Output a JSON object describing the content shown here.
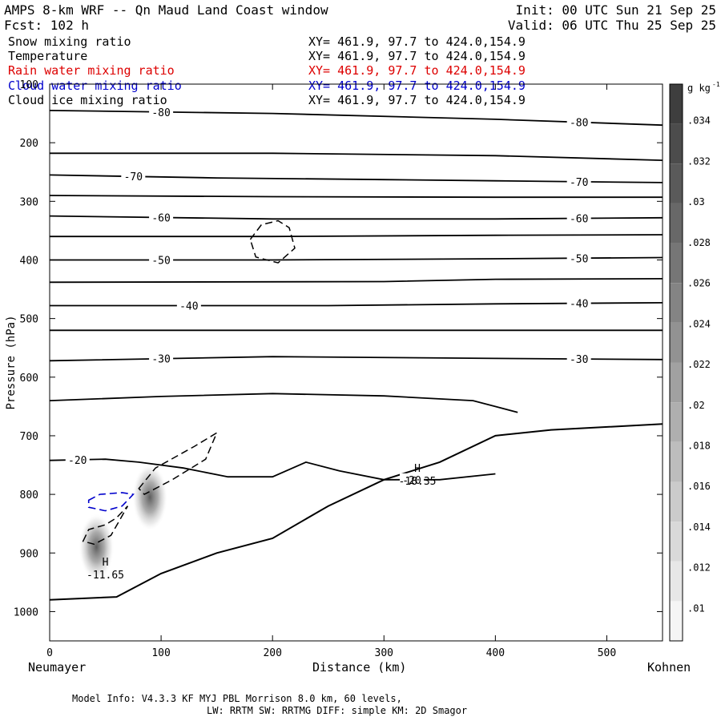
{
  "header": {
    "title": "AMPS 8-km WRF -- Qn Maud Land Coast window",
    "init": "Init: 00 UTC Sun 21 Sep 25",
    "fcst": "Fcst:  102 h",
    "valid": "Valid: 06 UTC Thu 25 Sep 25"
  },
  "fields": [
    {
      "name": "Snow mixing ratio",
      "xy": "XY= 461.9, 97.7 to 424.0,154.9",
      "color": "#000000"
    },
    {
      "name": "Temperature",
      "xy": "XY= 461.9, 97.7 to 424.0,154.9",
      "color": "#000000"
    },
    {
      "name": "Rain water mixing ratio",
      "xy": "XY= 461.9, 97.7 to 424.0,154.9",
      "color": "#dd0000"
    },
    {
      "name": "Cloud water mixing ratio",
      "xy": "XY= 461.9, 97.7 to 424.0,154.9",
      "color": "#0000cc"
    },
    {
      "name": "Cloud ice mixing ratio",
      "xy": "XY= 461.9, 97.7 to 424.0,154.9",
      "color": "#000000"
    }
  ],
  "footer": {
    "line1": "Model Info: V4.3.3   KF      MYJ PBL  Morrison             8.0 km,  60 levels,",
    "line2": "LW: RRTM SW: RRTMG   DIFF: simple KM: 2D Smagor"
  },
  "chart_data": {
    "type": "contour",
    "xlabel": "Distance (km)",
    "ylabel": "Pressure (hPa)",
    "xlim": [
      0,
      550
    ],
    "ylim": [
      1050,
      100
    ],
    "x_ticks": [
      0,
      100,
      200,
      300,
      400,
      500
    ],
    "y_ticks": [
      100,
      200,
      300,
      400,
      500,
      600,
      700,
      800,
      900,
      1000
    ],
    "x_start_label": "Neumayer",
    "x_end_label": "Kohnen",
    "colorbar": {
      "unit": "g kg",
      "unit_exp": "-1",
      "tick_labels": [
        ".01",
        ".012",
        ".014",
        ".016",
        ".018",
        ".02",
        ".022",
        ".024",
        ".026",
        ".028",
        ".03",
        ".032",
        ".034"
      ],
      "tick_values": [
        0.01,
        0.012,
        0.014,
        0.016,
        0.018,
        0.02,
        0.022,
        0.024,
        0.026,
        0.028,
        0.03,
        0.032,
        0.034
      ],
      "range": [
        0.0084,
        0.0358
      ],
      "levels": 14
    },
    "temperature_contours": [
      {
        "value": -80,
        "label": "-80",
        "points": [
          [
            0,
            145
          ],
          [
            200,
            150
          ],
          [
            400,
            160
          ],
          [
            550,
            170
          ]
        ]
      },
      {
        "value": -75,
        "label": "",
        "points": [
          [
            0,
            218
          ],
          [
            200,
            218
          ],
          [
            400,
            222
          ],
          [
            550,
            230
          ]
        ]
      },
      {
        "value": -70,
        "label": "-70",
        "points": [
          [
            0,
            255
          ],
          [
            150,
            260
          ],
          [
            300,
            263
          ],
          [
            400,
            265
          ],
          [
            550,
            268
          ]
        ]
      },
      {
        "value": -65,
        "label": "",
        "points": [
          [
            0,
            290
          ],
          [
            200,
            292
          ],
          [
            400,
            293
          ],
          [
            550,
            293
          ]
        ]
      },
      {
        "value": -60,
        "label": "-60",
        "points": [
          [
            0,
            325
          ],
          [
            200,
            330
          ],
          [
            400,
            330
          ],
          [
            550,
            328
          ]
        ]
      },
      {
        "value": -55,
        "label": "",
        "points": [
          [
            0,
            360
          ],
          [
            200,
            360
          ],
          [
            400,
            358
          ],
          [
            550,
            357
          ]
        ]
      },
      {
        "value": -50,
        "label": "-50",
        "points": [
          [
            0,
            400
          ],
          [
            200,
            400
          ],
          [
            400,
            398
          ],
          [
            550,
            396
          ]
        ]
      },
      {
        "value": -45,
        "label": "",
        "points": [
          [
            0,
            438
          ],
          [
            300,
            437
          ],
          [
            400,
            433
          ],
          [
            550,
            432
          ]
        ]
      },
      {
        "value": -40,
        "label": "-40",
        "points": [
          [
            0,
            478
          ],
          [
            250,
            478
          ],
          [
            400,
            475
          ],
          [
            550,
            473
          ]
        ]
      },
      {
        "value": -35,
        "label": "",
        "points": [
          [
            0,
            520
          ],
          [
            300,
            520
          ],
          [
            550,
            520
          ]
        ]
      },
      {
        "value": -30,
        "label": "-30",
        "points": [
          [
            0,
            572
          ],
          [
            200,
            565
          ],
          [
            400,
            568
          ],
          [
            550,
            570
          ]
        ]
      },
      {
        "value": -25,
        "label": "",
        "points": [
          [
            0,
            640
          ],
          [
            100,
            633
          ],
          [
            200,
            628
          ],
          [
            300,
            632
          ],
          [
            380,
            640
          ],
          [
            420,
            660
          ]
        ]
      },
      {
        "value": -20,
        "label": "-20",
        "points": [
          [
            0,
            742
          ],
          [
            50,
            740
          ],
          [
            80,
            745
          ],
          [
            120,
            755
          ],
          [
            160,
            770
          ],
          [
            200,
            770
          ],
          [
            230,
            745
          ],
          [
            260,
            760
          ],
          [
            300,
            775
          ],
          [
            350,
            775
          ],
          [
            400,
            765
          ]
        ]
      }
    ],
    "rain_water_contours": [],
    "cloud_water_contours": [
      {
        "label": "",
        "points": [
          [
            35,
            810
          ],
          [
            45,
            800
          ],
          [
            65,
            797
          ],
          [
            75,
            800
          ],
          [
            65,
            820
          ],
          [
            50,
            828
          ],
          [
            35,
            822
          ]
        ]
      }
    ],
    "cloud_ice_contours": [
      {
        "label": "",
        "points": [
          [
            180,
            365
          ],
          [
            190,
            340
          ],
          [
            205,
            333
          ],
          [
            215,
            345
          ],
          [
            220,
            380
          ],
          [
            205,
            405
          ],
          [
            185,
            395
          ]
        ]
      },
      {
        "label": "",
        "points": [
          [
            80,
            790
          ],
          [
            95,
            755
          ],
          [
            130,
            718
          ],
          [
            150,
            695
          ],
          [
            140,
            740
          ],
          [
            110,
            775
          ],
          [
            85,
            800
          ]
        ]
      },
      {
        "label": "",
        "points": [
          [
            30,
            880
          ],
          [
            35,
            860
          ],
          [
            50,
            852
          ],
          [
            60,
            840
          ],
          [
            70,
            820
          ],
          [
            55,
            870
          ],
          [
            40,
            885
          ]
        ]
      }
    ],
    "snow_shading": [
      {
        "x": 42,
        "p": 890,
        "max": 0.03
      },
      {
        "x": 90,
        "p": 805,
        "max": 0.03
      }
    ],
    "highs": [
      {
        "label": "H",
        "value": "-18.35",
        "x": 330,
        "p": 770
      },
      {
        "label": "H",
        "value": "-11.65",
        "x": 50,
        "p": 930
      }
    ],
    "terrain": [
      [
        0,
        980
      ],
      [
        60,
        975
      ],
      [
        100,
        935
      ],
      [
        150,
        900
      ],
      [
        200,
        875
      ],
      [
        250,
        820
      ],
      [
        300,
        775
      ],
      [
        350,
        745
      ],
      [
        400,
        700
      ],
      [
        450,
        690
      ],
      [
        550,
        680
      ]
    ]
  }
}
